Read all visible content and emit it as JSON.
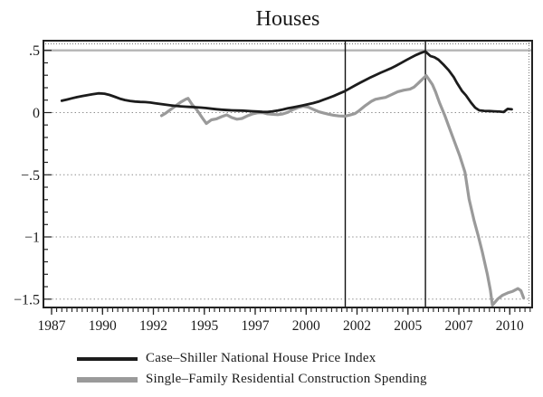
{
  "chart_data": {
    "type": "line",
    "title": "Houses",
    "x_axis": {
      "range": [
        1986.6,
        2010.6
      ],
      "minor_tick_step_years": 0.25,
      "tick_labels": [
        {
          "label": "1987",
          "t": 1987
        },
        {
          "label": "1990",
          "t": 1989.5
        },
        {
          "label": "1992",
          "t": 1992
        },
        {
          "label": "1995",
          "t": 1994.5
        },
        {
          "label": "1997",
          "t": 1997
        },
        {
          "label": "2000",
          "t": 1999.5
        },
        {
          "label": "2002",
          "t": 2002
        },
        {
          "label": "2005",
          "t": 2004.5
        },
        {
          "label": "2007",
          "t": 2007
        },
        {
          "label": "2010",
          "t": 2009.5
        }
      ]
    },
    "y_axis": {
      "range": [
        -1.567,
        0.578
      ],
      "minor_tick_step": 0.1,
      "ticks": [
        {
          "label": ".5",
          "v": 0.5,
          "grid": "solid"
        },
        {
          "label": "0",
          "v": 0,
          "grid": "dotted"
        },
        {
          "label": "−.5",
          "v": -0.5,
          "grid": "dotted"
        },
        {
          "label": "−1",
          "v": -1,
          "grid": "dotted"
        },
        {
          "label": "−1.5",
          "v": -1.5,
          "grid": "dotted"
        }
      ]
    },
    "vlines": [
      2001.42,
      2005.36
    ],
    "legend_position": "bottom",
    "series": [
      {
        "name": "Case–Shiller National House Price Index",
        "color": "#1c1c1c",
        "stroke_width": 2.8,
        "points": [
          [
            1987.5,
            0.095
          ],
          [
            1987.75,
            0.105
          ],
          [
            1988.0,
            0.115
          ],
          [
            1988.25,
            0.124
          ],
          [
            1988.5,
            0.132
          ],
          [
            1988.75,
            0.14
          ],
          [
            1989.0,
            0.147
          ],
          [
            1989.3,
            0.155
          ],
          [
            1989.6,
            0.152
          ],
          [
            1989.85,
            0.142
          ],
          [
            1990.1,
            0.127
          ],
          [
            1990.35,
            0.112
          ],
          [
            1990.6,
            0.101
          ],
          [
            1990.85,
            0.094
          ],
          [
            1991.1,
            0.089
          ],
          [
            1991.35,
            0.086
          ],
          [
            1991.6,
            0.084
          ],
          [
            1991.85,
            0.081
          ],
          [
            1992.1,
            0.075
          ],
          [
            1992.35,
            0.069
          ],
          [
            1992.6,
            0.063
          ],
          [
            1992.85,
            0.058
          ],
          [
            1993.1,
            0.054
          ],
          [
            1993.35,
            0.05
          ],
          [
            1993.6,
            0.047
          ],
          [
            1993.85,
            0.045
          ],
          [
            1994.1,
            0.043
          ],
          [
            1994.35,
            0.04
          ],
          [
            1994.6,
            0.036
          ],
          [
            1994.85,
            0.031
          ],
          [
            1995.1,
            0.027
          ],
          [
            1995.35,
            0.023
          ],
          [
            1995.6,
            0.02
          ],
          [
            1995.85,
            0.018
          ],
          [
            1996.1,
            0.017
          ],
          [
            1996.35,
            0.016
          ],
          [
            1996.6,
            0.014
          ],
          [
            1996.85,
            0.011
          ],
          [
            1997.1,
            0.009
          ],
          [
            1997.35,
            0.006
          ],
          [
            1997.6,
            0.005
          ],
          [
            1997.85,
            0.01
          ],
          [
            1998.1,
            0.017
          ],
          [
            1998.35,
            0.025
          ],
          [
            1998.6,
            0.034
          ],
          [
            1998.85,
            0.042
          ],
          [
            1999.1,
            0.05
          ],
          [
            1999.35,
            0.058
          ],
          [
            1999.6,
            0.067
          ],
          [
            1999.85,
            0.076
          ],
          [
            2000.1,
            0.088
          ],
          [
            2000.35,
            0.103
          ],
          [
            2000.6,
            0.118
          ],
          [
            2000.85,
            0.133
          ],
          [
            2001.1,
            0.151
          ],
          [
            2001.4,
            0.172
          ],
          [
            2001.65,
            0.195
          ],
          [
            2001.9,
            0.218
          ],
          [
            2002.15,
            0.24
          ],
          [
            2002.4,
            0.261
          ],
          [
            2002.65,
            0.281
          ],
          [
            2002.9,
            0.301
          ],
          [
            2003.15,
            0.32
          ],
          [
            2003.4,
            0.337
          ],
          [
            2003.65,
            0.355
          ],
          [
            2003.9,
            0.375
          ],
          [
            2004.15,
            0.398
          ],
          [
            2004.4,
            0.42
          ],
          [
            2004.65,
            0.442
          ],
          [
            2004.9,
            0.463
          ],
          [
            2005.1,
            0.478
          ],
          [
            2005.35,
            0.492
          ],
          [
            2005.6,
            0.455
          ],
          [
            2005.8,
            0.445
          ],
          [
            2006.0,
            0.425
          ],
          [
            2006.25,
            0.385
          ],
          [
            2006.5,
            0.34
          ],
          [
            2006.75,
            0.285
          ],
          [
            2006.9,
            0.24
          ],
          [
            2007.15,
            0.175
          ],
          [
            2007.35,
            0.138
          ],
          [
            2007.6,
            0.08
          ],
          [
            2007.8,
            0.04
          ],
          [
            2008.0,
            0.018
          ],
          [
            2008.25,
            0.014
          ],
          [
            2008.5,
            0.012
          ],
          [
            2008.75,
            0.01
          ],
          [
            2009.0,
            0.008
          ],
          [
            2009.2,
            0.004
          ],
          [
            2009.4,
            0.03
          ],
          [
            2009.6,
            0.026
          ]
        ]
      },
      {
        "name": "Single–Family Residential Construction Spending",
        "color": "#9a9a9a",
        "stroke_width": 3.2,
        "points": [
          [
            1992.4,
            -0.025
          ],
          [
            1992.6,
            -0.005
          ],
          [
            1992.85,
            0.025
          ],
          [
            1993.1,
            0.055
          ],
          [
            1993.35,
            0.085
          ],
          [
            1993.6,
            0.108
          ],
          [
            1993.7,
            0.114
          ],
          [
            1993.9,
            0.065
          ],
          [
            1994.15,
            0.018
          ],
          [
            1994.4,
            -0.042
          ],
          [
            1994.6,
            -0.088
          ],
          [
            1994.85,
            -0.058
          ],
          [
            1995.1,
            -0.05
          ],
          [
            1995.35,
            -0.033
          ],
          [
            1995.6,
            -0.018
          ],
          [
            1995.85,
            -0.04
          ],
          [
            1996.1,
            -0.053
          ],
          [
            1996.35,
            -0.047
          ],
          [
            1996.6,
            -0.028
          ],
          [
            1996.85,
            -0.012
          ],
          [
            1997.1,
            -0.002
          ],
          [
            1997.35,
            0.0
          ],
          [
            1997.6,
            -0.01
          ],
          [
            1997.85,
            -0.014
          ],
          [
            1998.1,
            -0.017
          ],
          [
            1998.35,
            -0.011
          ],
          [
            1998.6,
            0.002
          ],
          [
            1998.85,
            0.024
          ],
          [
            1999.1,
            0.04
          ],
          [
            1999.35,
            0.05
          ],
          [
            1999.6,
            0.044
          ],
          [
            1999.85,
            0.026
          ],
          [
            2000.1,
            0.008
          ],
          [
            2000.35,
            -0.003
          ],
          [
            2000.6,
            -0.013
          ],
          [
            2000.85,
            -0.021
          ],
          [
            2001.1,
            -0.027
          ],
          [
            2001.4,
            -0.029
          ],
          [
            2001.65,
            -0.02
          ],
          [
            2001.9,
            -0.008
          ],
          [
            2002.1,
            0.015
          ],
          [
            2002.4,
            0.055
          ],
          [
            2002.7,
            0.09
          ],
          [
            2002.9,
            0.107
          ],
          [
            2003.15,
            0.115
          ],
          [
            2003.4,
            0.122
          ],
          [
            2003.7,
            0.145
          ],
          [
            2004.0,
            0.168
          ],
          [
            2004.3,
            0.18
          ],
          [
            2004.6,
            0.188
          ],
          [
            2004.8,
            0.205
          ],
          [
            2005.0,
            0.235
          ],
          [
            2005.2,
            0.267
          ],
          [
            2005.4,
            0.297
          ],
          [
            2005.55,
            0.262
          ],
          [
            2005.7,
            0.225
          ],
          [
            2005.85,
            0.17
          ],
          [
            2006.05,
            0.08
          ],
          [
            2006.3,
            -0.02
          ],
          [
            2006.55,
            -0.13
          ],
          [
            2006.8,
            -0.24
          ],
          [
            2007.05,
            -0.35
          ],
          [
            2007.3,
            -0.48
          ],
          [
            2007.5,
            -0.695
          ],
          [
            2007.75,
            -0.87
          ],
          [
            2007.95,
            -0.99
          ],
          [
            2008.15,
            -1.12
          ],
          [
            2008.4,
            -1.3
          ],
          [
            2008.55,
            -1.43
          ],
          [
            2008.65,
            -1.548
          ],
          [
            2008.9,
            -1.5
          ],
          [
            2009.15,
            -1.468
          ],
          [
            2009.4,
            -1.45
          ],
          [
            2009.65,
            -1.437
          ],
          [
            2009.9,
            -1.415
          ],
          [
            2010.05,
            -1.432
          ],
          [
            2010.18,
            -1.49
          ]
        ]
      }
    ]
  },
  "colors": {
    "background": "#ffffff",
    "frame": "#222222",
    "grid_solid": "#b5b5b5",
    "grid_dotted": "#8a8a8a",
    "vline": "#111111",
    "text": "#1a1a1a"
  }
}
